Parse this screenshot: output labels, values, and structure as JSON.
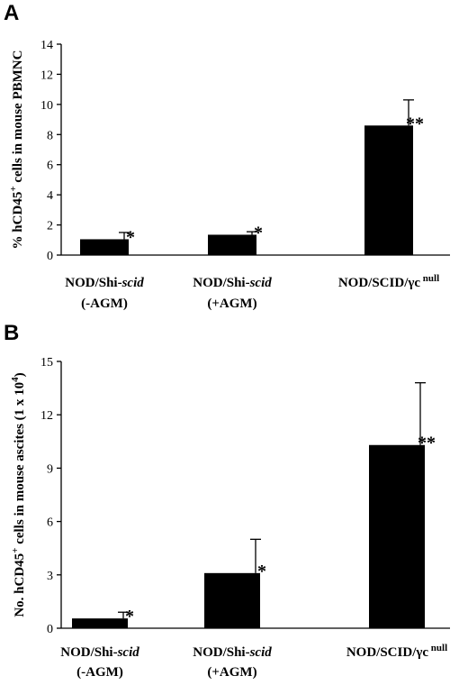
{
  "chart_data": [
    {
      "panel": "A",
      "type": "bar",
      "ylabel": {
        "pre": "% hCD45",
        "sup": "+",
        "post": " cells in mouse PBMNC"
      },
      "ylim": [
        0,
        14
      ],
      "yticks": [
        0,
        2,
        4,
        6,
        8,
        10,
        12,
        14
      ],
      "categories": [
        {
          "line1": "NOD/Shi-",
          "line1_it": "scid",
          "line2": "(-AGM)"
        },
        {
          "line1": "NOD/Shi-",
          "line1_it": "scid",
          "line2": "(+AGM)"
        },
        {
          "line1": "NOD/SCID/γc",
          "line1_sup": "null",
          "line2": ""
        }
      ],
      "values": [
        1.05,
        1.35,
        8.6
      ],
      "errors": [
        0.45,
        0.2,
        1.7
      ],
      "significance": [
        "*",
        "*",
        "**"
      ],
      "grid": false
    },
    {
      "panel": "B",
      "type": "bar",
      "ylabel": {
        "pre": "No. hCD45",
        "sup": "+",
        "post": " cells in mouse ascites (1 x 10",
        "sup2": "4",
        "post2": ")"
      },
      "ylim": [
        0,
        15
      ],
      "yticks": [
        0,
        3,
        6,
        9,
        12,
        15
      ],
      "categories": [
        {
          "line1": "NOD/Shi-",
          "line1_it": "scid",
          "line2": "(-AGM)"
        },
        {
          "line1": "NOD/Shi-",
          "line1_it": "scid",
          "line2": "(+AGM)"
        },
        {
          "line1": "NOD/SCID/γc",
          "line1_sup": "null",
          "line2": ""
        }
      ],
      "values": [
        0.55,
        3.1,
        10.3
      ],
      "errors": [
        0.35,
        1.9,
        3.5
      ],
      "significance": [
        "*",
        "*",
        "**"
      ],
      "grid": false
    }
  ]
}
